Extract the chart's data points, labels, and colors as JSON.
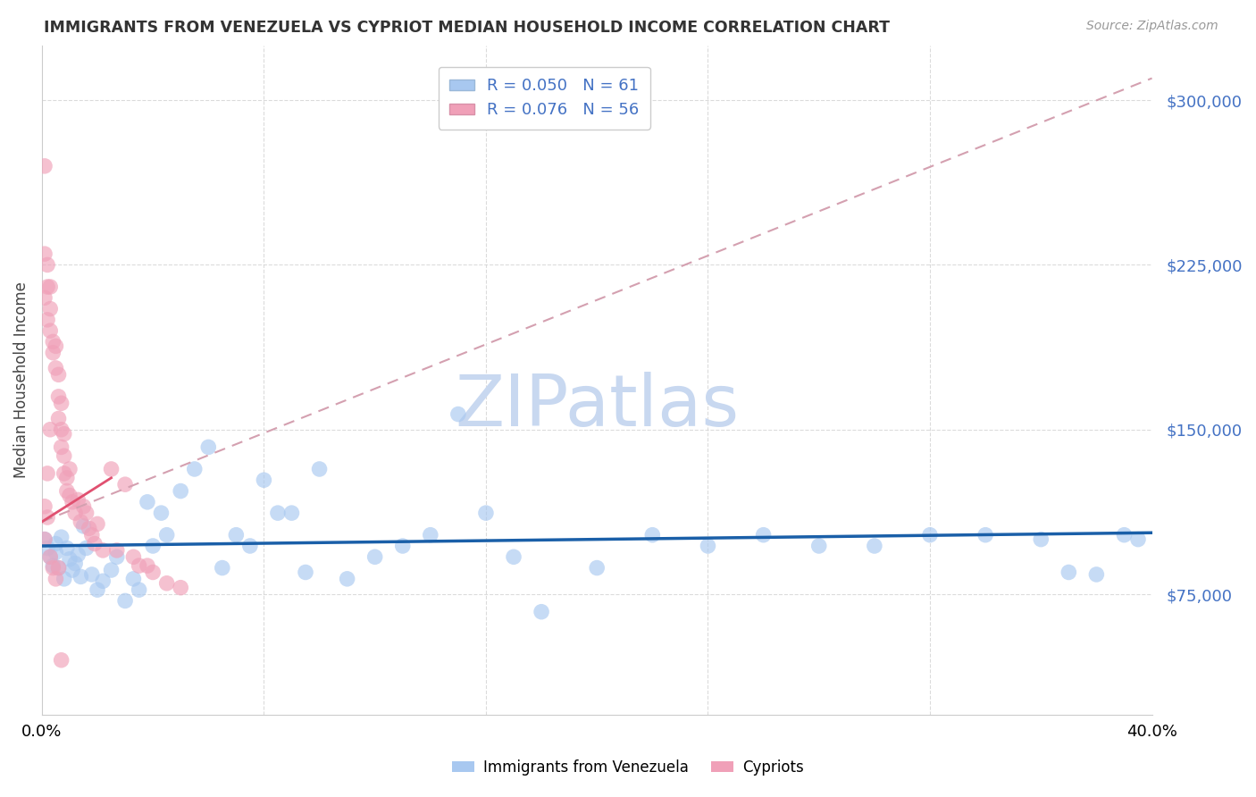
{
  "title": "IMMIGRANTS FROM VENEZUELA VS CYPRIOT MEDIAN HOUSEHOLD INCOME CORRELATION CHART",
  "source": "Source: ZipAtlas.com",
  "ylabel": "Median Household Income",
  "y_ticks": [
    75000,
    150000,
    225000,
    300000
  ],
  "y_tick_labels": [
    "$75,000",
    "$150,000",
    "$225,000",
    "$300,000"
  ],
  "xmin": 0.0,
  "xmax": 0.4,
  "ymin": 20000,
  "ymax": 325000,
  "series1_label": "Immigrants from Venezuela",
  "series2_label": "Cypriots",
  "R1": 0.05,
  "N1": 61,
  "R2": 0.076,
  "N2": 56,
  "color1": "#a8c8f0",
  "color2": "#f0a0b8",
  "trendline1_color": "#1a5fa8",
  "trendline2_solid_color": "#e05070",
  "trendline2_dash_color": "#d4a0b0",
  "watermark_color": "#c8d8f0",
  "background_color": "#ffffff",
  "series1_x": [
    0.001,
    0.002,
    0.003,
    0.004,
    0.005,
    0.005,
    0.006,
    0.007,
    0.008,
    0.009,
    0.01,
    0.011,
    0.012,
    0.013,
    0.014,
    0.015,
    0.016,
    0.018,
    0.02,
    0.022,
    0.025,
    0.027,
    0.03,
    0.033,
    0.035,
    0.038,
    0.04,
    0.043,
    0.045,
    0.05,
    0.055,
    0.06,
    0.065,
    0.07,
    0.075,
    0.08,
    0.085,
    0.09,
    0.095,
    0.1,
    0.11,
    0.12,
    0.13,
    0.14,
    0.15,
    0.16,
    0.17,
    0.18,
    0.2,
    0.22,
    0.24,
    0.26,
    0.28,
    0.3,
    0.32,
    0.34,
    0.36,
    0.37,
    0.38,
    0.39,
    0.395
  ],
  "series1_y": [
    100000,
    96000,
    92000,
    88000,
    94000,
    98000,
    87000,
    101000,
    82000,
    96000,
    91000,
    86000,
    89000,
    93000,
    83000,
    106000,
    96000,
    84000,
    77000,
    81000,
    86000,
    92000,
    72000,
    82000,
    77000,
    117000,
    97000,
    112000,
    102000,
    122000,
    132000,
    142000,
    87000,
    102000,
    97000,
    127000,
    112000,
    112000,
    85000,
    132000,
    82000,
    92000,
    97000,
    102000,
    157000,
    112000,
    92000,
    67000,
    87000,
    102000,
    97000,
    102000,
    97000,
    97000,
    102000,
    102000,
    100000,
    85000,
    84000,
    102000,
    100000
  ],
  "series2_x": [
    0.001,
    0.001,
    0.001,
    0.002,
    0.002,
    0.002,
    0.003,
    0.003,
    0.003,
    0.004,
    0.004,
    0.005,
    0.005,
    0.006,
    0.006,
    0.006,
    0.007,
    0.007,
    0.007,
    0.008,
    0.008,
    0.008,
    0.009,
    0.009,
    0.01,
    0.01,
    0.011,
    0.012,
    0.013,
    0.014,
    0.015,
    0.016,
    0.017,
    0.018,
    0.019,
    0.02,
    0.022,
    0.025,
    0.027,
    0.03,
    0.033,
    0.035,
    0.038,
    0.04,
    0.045,
    0.05,
    0.001,
    0.001,
    0.002,
    0.002,
    0.003,
    0.003,
    0.004,
    0.005,
    0.006,
    0.007
  ],
  "series2_y": [
    270000,
    230000,
    210000,
    225000,
    215000,
    200000,
    215000,
    205000,
    195000,
    190000,
    185000,
    188000,
    178000,
    175000,
    165000,
    155000,
    162000,
    150000,
    142000,
    148000,
    138000,
    130000,
    128000,
    122000,
    132000,
    120000,
    117000,
    112000,
    118000,
    108000,
    115000,
    112000,
    105000,
    102000,
    98000,
    107000,
    95000,
    132000,
    95000,
    125000,
    92000,
    88000,
    88000,
    85000,
    80000,
    78000,
    100000,
    115000,
    110000,
    130000,
    150000,
    92000,
    87000,
    82000,
    87000,
    45000
  ],
  "trendline1_x0": 0.0,
  "trendline1_x1": 0.4,
  "trendline1_y0": 97000,
  "trendline1_y1": 103000,
  "trendline2_solid_x0": 0.0,
  "trendline2_solid_x1": 0.025,
  "trendline2_solid_y0": 108000,
  "trendline2_solid_y1": 128000,
  "trendline2_dash_x0": 0.0,
  "trendline2_dash_x1": 0.4,
  "trendline2_dash_y0": 108000,
  "trendline2_dash_y1": 310000
}
